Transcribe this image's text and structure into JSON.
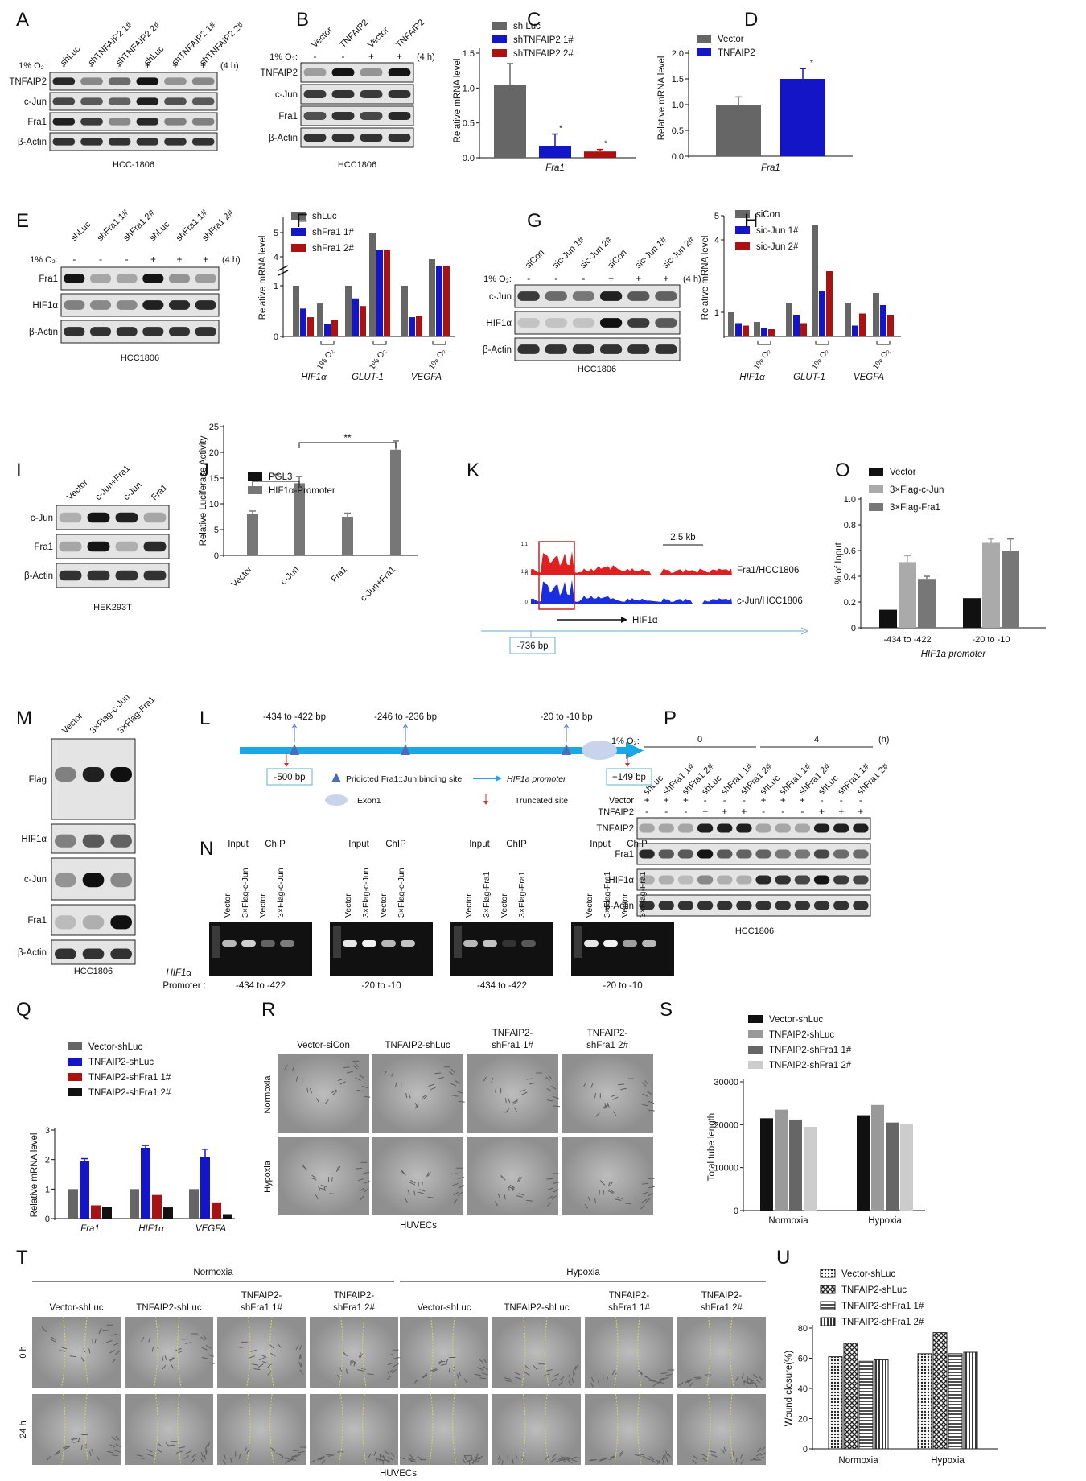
{
  "panels": {
    "A": {
      "letter": "A",
      "lanes": [
        "shLuc",
        "shTNFAIP2 1#",
        "shTNFAIP2 2#",
        "shLuc",
        "shTNFAIP2 1#",
        "shTNFAIP2 2#"
      ],
      "o2_label": "1% O₂:",
      "o2_signs": [
        "-",
        "-",
        "-",
        "+",
        "+",
        "+"
      ],
      "time": "(4 h)",
      "bands": [
        "TNFAIP2",
        "c-Jun",
        "Fra1",
        "β-Actin"
      ],
      "cell_line": "HCC-1806"
    },
    "B": {
      "letter": "B",
      "lanes": [
        "Vector",
        "TNFAIP2",
        "Vector",
        "TNFAIP2"
      ],
      "o2_label": "1% O₂:",
      "o2_signs": [
        "-",
        "-",
        "+",
        "+"
      ],
      "time": "(4 h)",
      "bands": [
        "TNFAIP2",
        "c-Jun",
        "Fra1",
        "β-Actin"
      ],
      "cell_line": "HCC1806"
    },
    "C": {
      "letter": "C",
      "ylabel": "Relative mRNA level",
      "xlabel": "Fra1"
    },
    "D": {
      "letter": "D",
      "ylabel": "Relative mRNA level",
      "xlabel": "Fra1"
    },
    "E": {
      "letter": "E",
      "lanes": [
        "shLuc",
        "shFra1 1#",
        "shFra1 2#",
        "shLuc",
        "shFra1 1#",
        "shFra1 2#"
      ],
      "o2_label": "1% O₂:",
      "o2_signs": [
        "-",
        "-",
        "-",
        "+",
        "+",
        "+"
      ],
      "time": "(4 h)",
      "bands": [
        "Fra1",
        "HIF1α",
        "β-Actin"
      ],
      "cell_line": "HCC1806"
    },
    "F": {
      "letter": "F",
      "ylabel": "Relative mRNA level",
      "groups": [
        "HIF1α",
        "GLUT-1",
        "VEGFA"
      ],
      "o2": "1% O₂"
    },
    "G": {
      "letter": "G",
      "lanes": [
        "siCon",
        "sic-Jun 1#",
        "sic-Jun 2#",
        "siCon",
        "sic-Jun 1#",
        "sic-Jun 2#"
      ],
      "o2_label": "1% O₂:",
      "o2_signs": [
        "-",
        "-",
        "-",
        "+",
        "+",
        "+"
      ],
      "time": "(4 h)",
      "bands": [
        "c-Jun",
        "HIF1α",
        "β-Actin"
      ],
      "cell_line": "HCC1806"
    },
    "H": {
      "letter": "H",
      "ylabel": "Relative mRNA level",
      "groups": [
        "HIF1α",
        "GLUT-1",
        "VEGFA"
      ],
      "o2": "1% O₂"
    },
    "I": {
      "letter": "I",
      "lanes": [
        "Vector",
        "c-Jun+Fra1",
        "c-Jun",
        "Fra1"
      ],
      "bands": [
        "c-Jun",
        "Fra1",
        "β-Actin"
      ],
      "cell_line": "HEK293T"
    },
    "J": {
      "letter": "J",
      "ylabel": "Relative Luciferase Activity",
      "sig": "**"
    },
    "K": {
      "letter": "K",
      "scale": "2.5 kb",
      "track1": "Fra1/HCC1806",
      "track2": "c-Jun/HCC1806",
      "gene": "HIF1α",
      "pos": "-736 bp",
      "ticks1": [
        "1.1",
        "0"
      ],
      "ticks2": [
        "1.3",
        "0"
      ]
    },
    "O": {
      "letter": "O",
      "ylabel": "% of Input",
      "xlabel": "HIF1a promoter"
    },
    "M": {
      "letter": "M",
      "lanes": [
        "Vector",
        "3×Flag-c-Jun",
        "3×Flag-Fra1"
      ],
      "bands": [
        "Flag",
        "HIF1α",
        "c-Jun",
        "Fra1",
        "β-Actin"
      ],
      "cell_line": "HCC1806"
    },
    "L": {
      "letter": "L",
      "sites": [
        "-434 to -422 bp",
        "-246 to -236 bp",
        "-20 to -10 bp"
      ],
      "start": "-500 bp",
      "end": "+149 bp",
      "legend_site": "Pridicted Fra1::Jun binding site",
      "legend_promoter": "HIF1a promoter",
      "legend_exon": "Exon1",
      "legend_trunc": "Truncated site"
    },
    "N": {
      "letter": "N",
      "gels": [
        {
          "input": "Input",
          "chip": "ChIP",
          "lanes": [
            "Vector",
            "3×Flag-c-Jun",
            "Vector",
            "3×Flag-c-Jun"
          ],
          "region": "-434 to -422"
        },
        {
          "input": "Input",
          "chip": "ChIP",
          "lanes": [
            "Vector",
            "3×Flag-c-Jun",
            "Vector",
            "3×Flag-c-Jun"
          ],
          "region": "-20 to -10"
        },
        {
          "input": "Input",
          "chip": "ChIP",
          "lanes": [
            "Vector",
            "3×Flag-Fra1",
            "Vector",
            "3×Flag-Fra1"
          ],
          "region": "-434 to -422"
        },
        {
          "input": "Input",
          "chip": "ChIP",
          "lanes": [
            "Vector",
            "3×Flag-Fra1",
            "Vector",
            "3×Flag-Fra1"
          ],
          "region": "-20 to -10"
        }
      ],
      "promoter_label": "HIF1α",
      "promoter_label2": "Promoter :"
    },
    "P": {
      "letter": "P",
      "o2_label": "1% O₂:",
      "time0": "0",
      "time4": "4",
      "unit": "(h)",
      "lanes": [
        "shLuc",
        "shFra1 1#",
        "shFra1 2#",
        "shLuc",
        "shFra1 1#",
        "shFra1 2#",
        "shLuc",
        "shFra1 1#",
        "shFra1 2#",
        "shLuc",
        "shFra1 1#",
        "shFra1 2#"
      ],
      "vector_label": "Vector",
      "tnfaip2_label": "TNFAIP2",
      "vector_signs": [
        "+",
        "+",
        "+",
        "-",
        "-",
        "-",
        "+",
        "+",
        "+",
        "-",
        "-",
        "-"
      ],
      "tnfaip2_signs": [
        "-",
        "-",
        "-",
        "+",
        "+",
        "+",
        "-",
        "-",
        "-",
        "+",
        "+",
        "+"
      ],
      "bands": [
        "TNFAIP2",
        "Fra1",
        "HIF1α",
        "β-Actin"
      ],
      "cell_line": "HCC1806"
    },
    "Q": {
      "letter": "Q",
      "ylabel": "Relative mRNA level"
    },
    "R": {
      "letter": "R",
      "cols": [
        "Vector-siCon",
        "TNFAIP2-shLuc",
        "TNFAIP2-\nshFra1 1#",
        "TNFAIP2-\nshFra1 2#"
      ],
      "rows": [
        "Normoxia",
        "Hypoxia"
      ],
      "caption": "HUVECs"
    },
    "S": {
      "letter": "S",
      "ylabel": "Total tube length"
    },
    "T": {
      "letter": "T",
      "normoxia": "Normoxia",
      "hypoxia": "Hypoxia",
      "cols": [
        "Vector-shLuc",
        "TNFAIP2-shLuc",
        "TNFAIP2-\nshFra1 1#",
        "TNFAIP2-\nshFra1 2#",
        "Vector-shLuc",
        "TNFAIP2-shLuc",
        "TNFAIP2-\nshFra1 1#",
        "TNFAIP2-\nshFra1 2#"
      ],
      "rows": [
        "0 h",
        "24 h"
      ],
      "caption": "HUVECs"
    },
    "U": {
      "letter": "U",
      "ylabel": "Wound closure(%)"
    }
  },
  "chart_data": [
    {
      "id": "C",
      "type": "bar",
      "categories": [
        "Fra1"
      ],
      "series": [
        {
          "name": "sh Luc",
          "values": [
            1.05
          ],
          "err": [
            0.3
          ],
          "color": "#666666"
        },
        {
          "name": "shTNFAIP2 1#",
          "values": [
            0.17
          ],
          "err": [
            0.17
          ],
          "color": "#1515c8",
          "sig": "*"
        },
        {
          "name": "shTNFAIP2 2#",
          "values": [
            0.09
          ],
          "err": [
            0.03
          ],
          "color": "#aa1111",
          "sig": "*"
        }
      ],
      "ylim": [
        0,
        1.5
      ],
      "yticks": [
        0.0,
        0.5,
        1.0,
        1.5
      ]
    },
    {
      "id": "D",
      "type": "bar",
      "categories": [
        "Fra1"
      ],
      "series": [
        {
          "name": "Vector",
          "values": [
            1.0
          ],
          "err": [
            0.15
          ],
          "color": "#666666"
        },
        {
          "name": "TNFAIP2",
          "values": [
            1.5
          ],
          "err": [
            0.2
          ],
          "color": "#1515c8",
          "sig": "*"
        }
      ],
      "ylim": [
        0,
        2.0
      ],
      "yticks": [
        0.0,
        0.5,
        1.0,
        1.5,
        2.0
      ]
    },
    {
      "id": "F",
      "type": "bar",
      "categories": [
        "HIF1α N",
        "HIF1α H",
        "GLUT-1 N",
        "GLUT-1 H",
        "VEGFA N",
        "VEGFA H"
      ],
      "series": [
        {
          "name": "shLuc",
          "values": [
            1.0,
            0.65,
            1.0,
            5.0,
            1.0,
            3.9
          ],
          "color": "#666666"
        },
        {
          "name": "shFra1 1#",
          "values": [
            0.55,
            0.25,
            0.75,
            4.3,
            0.38,
            3.6
          ],
          "color": "#1515c8"
        },
        {
          "name": "shFra1 2#",
          "values": [
            0.38,
            0.32,
            0.6,
            4.3,
            0.4,
            3.6
          ],
          "color": "#aa1111"
        }
      ],
      "yticks": [
        0,
        1,
        4,
        5
      ],
      "broken_axis": [
        1.3,
        3.5
      ]
    },
    {
      "id": "H",
      "type": "bar",
      "categories": [
        "HIF1α N",
        "HIF1α H",
        "GLUT-1 N",
        "GLUT-1 H",
        "VEGFA N",
        "VEGFA H"
      ],
      "series": [
        {
          "name": "siCon",
          "values": [
            1.0,
            0.6,
            1.4,
            4.6,
            1.4,
            1.8
          ],
          "color": "#666666"
        },
        {
          "name": "sic-Jun 1#",
          "values": [
            0.55,
            0.35,
            0.9,
            1.9,
            0.45,
            1.3
          ],
          "color": "#1515c8"
        },
        {
          "name": "sic-Jun 2#",
          "values": [
            0.45,
            0.3,
            0.55,
            2.7,
            0.95,
            0.9
          ],
          "color": "#aa1111"
        }
      ],
      "ylim": [
        0,
        5
      ],
      "yticks": [
        1,
        4,
        5
      ]
    },
    {
      "id": "J",
      "type": "bar",
      "categories": [
        "Vector",
        "c-Jun",
        "Fra1",
        "c-Jun+Fra1"
      ],
      "series": [
        {
          "name": "PGL3",
          "values": [
            0.1,
            0.1,
            0.1,
            0.1
          ],
          "color": "#111111"
        },
        {
          "name": "HIF1α-Promoter",
          "values": [
            8,
            14,
            7.5,
            20.5
          ],
          "err": [
            0.6,
            1.3,
            0.7,
            1.7
          ],
          "color": "#777777"
        }
      ],
      "ylim": [
        0,
        25
      ],
      "yticks": [
        0,
        5,
        10,
        15,
        20,
        25
      ]
    },
    {
      "id": "O",
      "type": "bar",
      "categories": [
        "-434 to -422",
        "-20 to -10"
      ],
      "series": [
        {
          "name": "Vector",
          "values": [
            0.14,
            0.23
          ],
          "color": "#111111"
        },
        {
          "name": "3×Flag-c-Jun",
          "values": [
            0.51,
            0.66
          ],
          "err": [
            0.05,
            0.03
          ],
          "color": "#aaaaaa"
        },
        {
          "name": "3×Flag-Fra1",
          "values": [
            0.38,
            0.6
          ],
          "err": [
            0.02,
            0.09
          ],
          "color": "#777777"
        }
      ],
      "ylim": [
        0,
        1.0
      ],
      "yticks": [
        0,
        0.2,
        0.4,
        0.6,
        0.8,
        1.0
      ]
    },
    {
      "id": "Q",
      "type": "bar",
      "categories": [
        "Fra1",
        "HIF1α",
        "VEGFA"
      ],
      "series": [
        {
          "name": "Vector-shLuc",
          "values": [
            1.0,
            1.0,
            1.0
          ],
          "color": "#666666"
        },
        {
          "name": "TNFAIP2-shLuc",
          "values": [
            1.95,
            2.4,
            2.1
          ],
          "err": [
            0.08,
            0.08,
            0.25
          ],
          "color": "#1515c8"
        },
        {
          "name": "TNFAIP2-shFra1 1#",
          "values": [
            0.45,
            0.8,
            0.55
          ],
          "color": "#aa1111"
        },
        {
          "name": "TNFAIP2-shFra1 2#",
          "values": [
            0.4,
            0.38,
            0.15
          ],
          "color": "#111111"
        }
      ],
      "ylim": [
        0,
        3
      ],
      "yticks": [
        0,
        1,
        2,
        3
      ]
    },
    {
      "id": "S",
      "type": "bar",
      "categories": [
        "Normoxia",
        "Hypoxia"
      ],
      "series": [
        {
          "name": "Vector-shLuc",
          "values": [
            21500,
            22200
          ],
          "color": "#111111"
        },
        {
          "name": "TNFAIP2-shLuc",
          "values": [
            23500,
            24600
          ],
          "color": "#999999"
        },
        {
          "name": "TNFAIP2-shFra1 1#",
          "values": [
            21200,
            20500
          ],
          "color": "#666666"
        },
        {
          "name": "TNFAIP2-shFra1 2#",
          "values": [
            19500,
            20200
          ],
          "color": "#cccccc"
        }
      ],
      "ylim": [
        0,
        30000
      ],
      "yticks": [
        0,
        10000,
        20000,
        30000
      ]
    },
    {
      "id": "U",
      "type": "bar",
      "categories": [
        "Normoxia",
        "Hypoxia"
      ],
      "series": [
        {
          "name": "Vector-shLuc",
          "values": [
            61,
            63
          ],
          "pattern": "dots"
        },
        {
          "name": "TNFAIP2-shLuc",
          "values": [
            70,
            77
          ],
          "pattern": "cross"
        },
        {
          "name": "TNFAIP2-shFra1 1#",
          "values": [
            58,
            63
          ],
          "pattern": "hlines"
        },
        {
          "name": "TNFAIP2-shFra1 2#",
          "values": [
            59,
            64
          ],
          "pattern": "vlines"
        }
      ],
      "ylim": [
        0,
        80
      ],
      "yticks": [
        0,
        20,
        40,
        60,
        80
      ]
    }
  ]
}
